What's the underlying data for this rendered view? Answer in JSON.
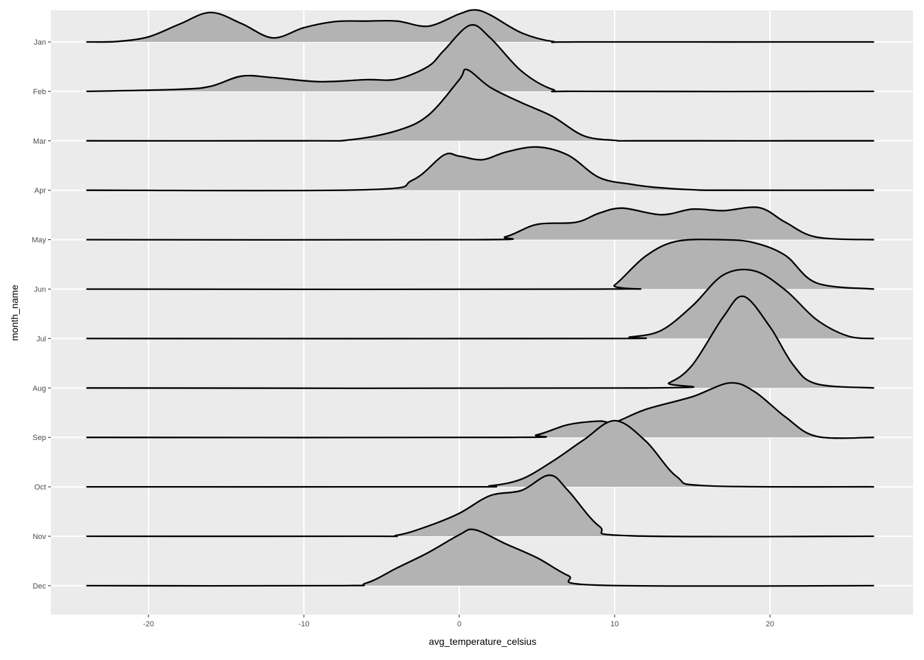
{
  "chart_data": {
    "type": "ridgeline",
    "xlabel": "avg_temperature_celsius",
    "ylabel": "month_name",
    "xlim": [
      -26.5,
      28
    ],
    "x_ticks": [
      -20,
      -10,
      0,
      10,
      20
    ],
    "x_tick_labels": [
      "-20",
      "-10",
      "0",
      "10",
      "20"
    ],
    "x_range_of_density": [
      -24,
      26.7
    ],
    "grid": true,
    "fill_color": "#b3b3b3",
    "panel_color": "#ebebeb",
    "categories": [
      "Jan",
      "Feb",
      "Mar",
      "Apr",
      "May",
      "Jun",
      "Jul",
      "Aug",
      "Sep",
      "Oct",
      "Nov",
      "Dec"
    ],
    "series": [
      {
        "name": "Jan",
        "points": [
          [
            -24,
            0
          ],
          [
            -22,
            0.01
          ],
          [
            -20,
            0.1
          ],
          [
            -18,
            0.35
          ],
          [
            -16,
            0.58
          ],
          [
            -14,
            0.36
          ],
          [
            -12,
            0.08
          ],
          [
            -10,
            0.28
          ],
          [
            -8,
            0.4
          ],
          [
            -6,
            0.41
          ],
          [
            -4,
            0.41
          ],
          [
            -2,
            0.31
          ],
          [
            0,
            0.55
          ],
          [
            1,
            0.63
          ],
          [
            2,
            0.53
          ],
          [
            4,
            0.18
          ],
          [
            6,
            0.01
          ],
          [
            8,
            0
          ],
          [
            26.7,
            0
          ]
        ]
      },
      {
        "name": "Feb",
        "points": [
          [
            -24,
            0
          ],
          [
            -18,
            0.04
          ],
          [
            -16,
            0.1
          ],
          [
            -14,
            0.3
          ],
          [
            -12,
            0.27
          ],
          [
            -9,
            0.19
          ],
          [
            -6,
            0.23
          ],
          [
            -4,
            0.24
          ],
          [
            -2,
            0.49
          ],
          [
            -1,
            0.8
          ],
          [
            0.7,
            1.3
          ],
          [
            2,
            1.05
          ],
          [
            4,
            0.4
          ],
          [
            6,
            0.04
          ],
          [
            8,
            0
          ],
          [
            26.7,
            0
          ]
        ]
      },
      {
        "name": "Mar",
        "points": [
          [
            -24,
            0
          ],
          [
            -10,
            0
          ],
          [
            -7,
            0.02
          ],
          [
            -4,
            0.2
          ],
          [
            -2,
            0.5
          ],
          [
            0,
            1.2
          ],
          [
            0.5,
            1.4
          ],
          [
            2,
            1.05
          ],
          [
            4,
            0.75
          ],
          [
            6,
            0.48
          ],
          [
            8,
            0.1
          ],
          [
            10,
            0.01
          ],
          [
            12,
            0
          ],
          [
            26.7,
            0
          ]
        ]
      },
      {
        "name": "Apr",
        "points": [
          [
            -24,
            0
          ],
          [
            -6,
            0.01
          ],
          [
            -3,
            0.2
          ],
          [
            -1,
            0.69
          ],
          [
            0,
            0.67
          ],
          [
            1.5,
            0.6
          ],
          [
            3,
            0.75
          ],
          [
            5,
            0.85
          ],
          [
            7,
            0.69
          ],
          [
            9,
            0.25
          ],
          [
            11,
            0.12
          ],
          [
            12.5,
            0.06
          ],
          [
            15,
            0.01
          ],
          [
            17,
            0
          ],
          [
            26.7,
            0
          ]
        ]
      },
      {
        "name": "May",
        "points": [
          [
            -24,
            0
          ],
          [
            1,
            0
          ],
          [
            3,
            0.06
          ],
          [
            5,
            0.3
          ],
          [
            7.5,
            0.34
          ],
          [
            9,
            0.52
          ],
          [
            10.5,
            0.62
          ],
          [
            13,
            0.49
          ],
          [
            15,
            0.6
          ],
          [
            17,
            0.57
          ],
          [
            19.3,
            0.63
          ],
          [
            21,
            0.34
          ],
          [
            23,
            0.05
          ],
          [
            26.7,
            0
          ]
        ]
      },
      {
        "name": "Jun",
        "points": [
          [
            -24,
            0
          ],
          [
            9,
            0
          ],
          [
            10,
            0.08
          ],
          [
            12,
            0.65
          ],
          [
            14,
            0.94
          ],
          [
            17,
            0.97
          ],
          [
            19,
            0.91
          ],
          [
            21,
            0.66
          ],
          [
            23,
            0.12
          ],
          [
            26.7,
            0
          ]
        ]
      },
      {
        "name": "Jul",
        "points": [
          [
            -24,
            0
          ],
          [
            9,
            0
          ],
          [
            11,
            0.03
          ],
          [
            13,
            0.16
          ],
          [
            15,
            0.64
          ],
          [
            17,
            1.25
          ],
          [
            19,
            1.33
          ],
          [
            21,
            0.95
          ],
          [
            23,
            0.37
          ],
          [
            25,
            0.05
          ],
          [
            26.7,
            0
          ]
        ]
      },
      {
        "name": "Aug",
        "points": [
          [
            -24,
            0
          ],
          [
            12,
            0
          ],
          [
            13.5,
            0.1
          ],
          [
            15,
            0.45
          ],
          [
            17,
            1.4
          ],
          [
            18.3,
            1.8
          ],
          [
            20,
            1.2
          ],
          [
            21.5,
            0.45
          ],
          [
            23,
            0.08
          ],
          [
            26.7,
            0
          ]
        ]
      },
      {
        "name": "Sep",
        "points": [
          [
            -24,
            0
          ],
          [
            3,
            0
          ],
          [
            5,
            0.05
          ],
          [
            7,
            0.25
          ],
          [
            9,
            0.32
          ],
          [
            10,
            0.3
          ],
          [
            12,
            0.55
          ],
          [
            15,
            0.8
          ],
          [
            17.4,
            1.07
          ],
          [
            19,
            0.9
          ],
          [
            21,
            0.4
          ],
          [
            23,
            0.02
          ],
          [
            26.7,
            0
          ]
        ]
      },
      {
        "name": "Oct",
        "points": [
          [
            -24,
            0
          ],
          [
            0,
            0
          ],
          [
            2,
            0.02
          ],
          [
            4,
            0.15
          ],
          [
            6,
            0.5
          ],
          [
            8,
            0.92
          ],
          [
            10,
            1.3
          ],
          [
            12,
            0.9
          ],
          [
            14,
            0.2
          ],
          [
            16,
            0.02
          ],
          [
            26.7,
            0
          ]
        ]
      },
      {
        "name": "Nov",
        "points": [
          [
            -24,
            0
          ],
          [
            -6,
            0
          ],
          [
            -4,
            0.02
          ],
          [
            -2,
            0.2
          ],
          [
            0,
            0.45
          ],
          [
            2,
            0.8
          ],
          [
            4,
            0.9
          ],
          [
            5.8,
            1.2
          ],
          [
            7,
            0.9
          ],
          [
            9,
            0.2
          ],
          [
            11,
            0.01
          ],
          [
            26.7,
            0
          ]
        ]
      },
      {
        "name": "Dec",
        "points": [
          [
            -24,
            0
          ],
          [
            -8,
            0
          ],
          [
            -6,
            0.05
          ],
          [
            -4,
            0.35
          ],
          [
            -2,
            0.65
          ],
          [
            0,
            1.0
          ],
          [
            1,
            1.1
          ],
          [
            3,
            0.82
          ],
          [
            5,
            0.55
          ],
          [
            7,
            0.2
          ],
          [
            9,
            0.01
          ],
          [
            26.7,
            0
          ]
        ]
      }
    ]
  }
}
